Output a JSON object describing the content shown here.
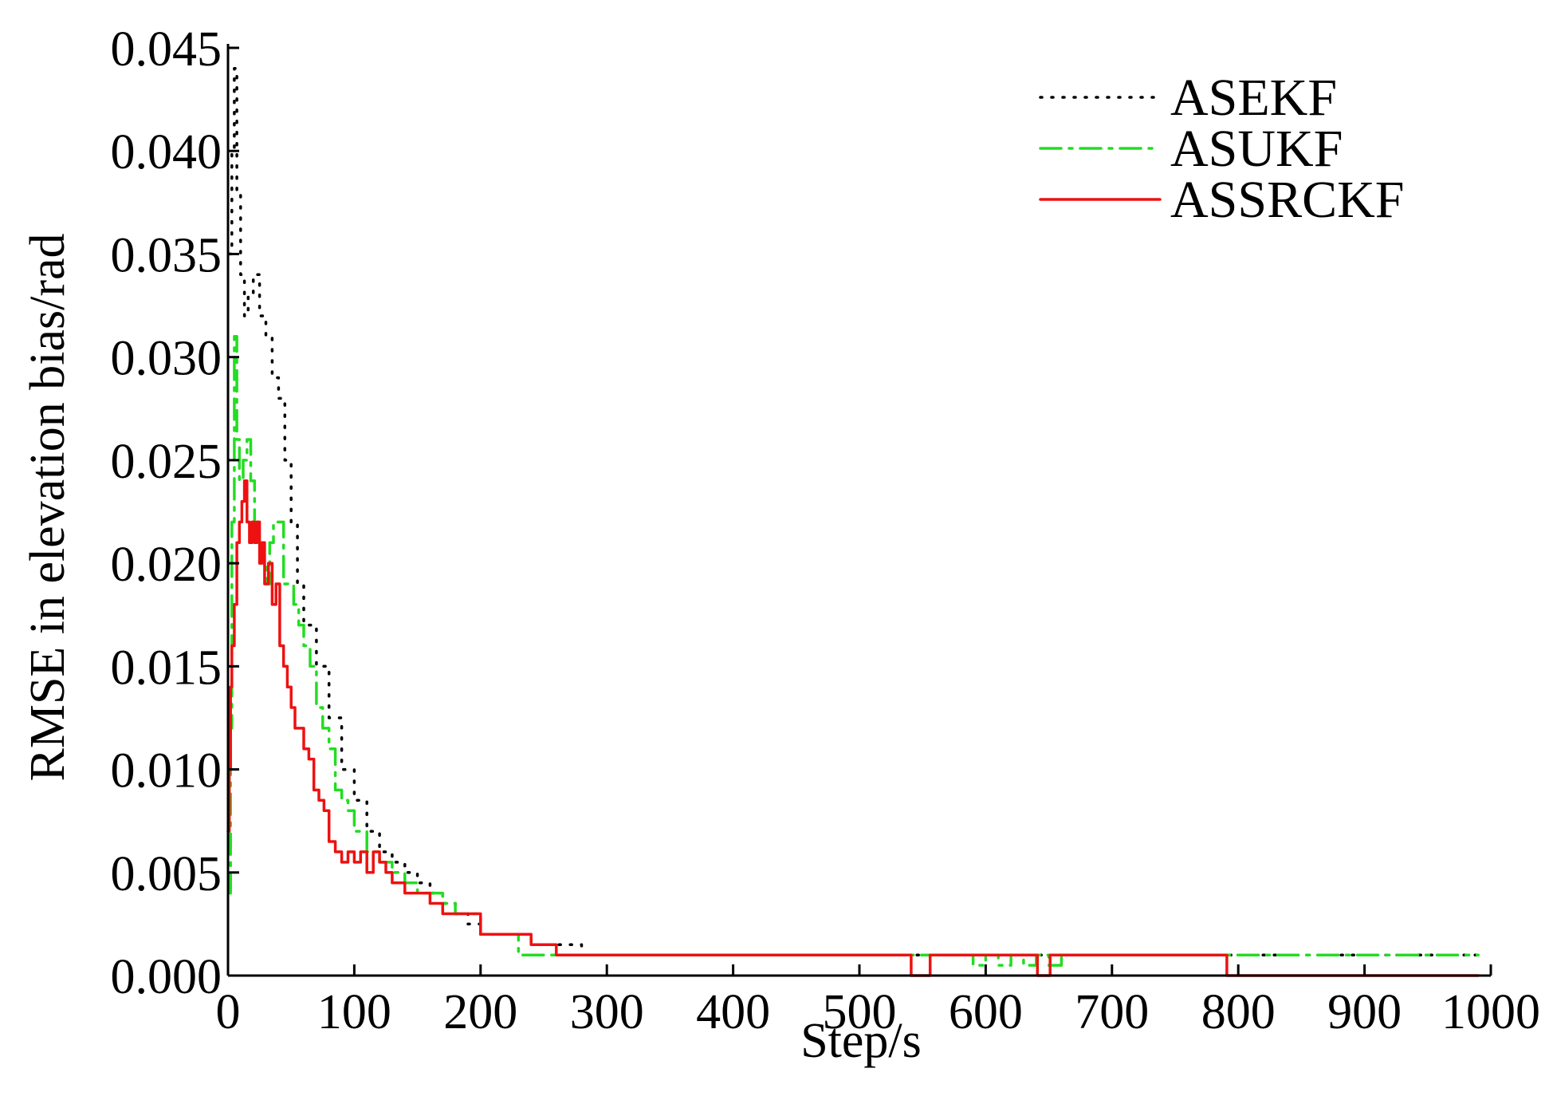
{
  "chart_data": {
    "type": "line",
    "title": "",
    "xlabel": "Step/s",
    "ylabel": "RMSE in elevation bias/rad",
    "xlim": [
      0,
      1000
    ],
    "ylim": [
      0,
      0.045
    ],
    "xticks": [
      0,
      100,
      200,
      300,
      400,
      500,
      600,
      700,
      800,
      900,
      1000
    ],
    "xtick_labels": [
      "0",
      "100",
      "200",
      "300",
      "400",
      "500",
      "600",
      "700",
      "800",
      "900",
      "1000"
    ],
    "yticks": [
      0,
      0.005,
      0.01,
      0.015,
      0.02,
      0.025,
      0.03,
      0.035,
      0.04,
      0.045
    ],
    "ytick_labels": [
      "0.000",
      "0.005",
      "0.010",
      "0.015",
      "0.020",
      "0.025",
      "0.030",
      "0.035",
      "0.040",
      "0.045"
    ],
    "grid": false,
    "legend_position": "top-right",
    "series": [
      {
        "name": "ASEKF",
        "color": "#000000",
        "style": "dotted",
        "x": [
          1,
          3,
          5,
          7,
          10,
          13,
          16,
          20,
          25,
          30,
          35,
          40,
          45,
          50,
          55,
          60,
          70,
          80,
          90,
          100,
          110,
          120,
          130,
          140,
          150,
          160,
          170,
          180,
          190,
          200,
          220,
          240,
          260,
          280,
          300,
          400,
          500,
          600,
          700,
          800,
          900,
          990
        ],
        "y": [
          0.035,
          0.04,
          0.044,
          0.038,
          0.034,
          0.032,
          0.033,
          0.034,
          0.032,
          0.031,
          0.029,
          0.028,
          0.025,
          0.022,
          0.019,
          0.017,
          0.015,
          0.0125,
          0.01,
          0.0085,
          0.007,
          0.006,
          0.0055,
          0.005,
          0.0045,
          0.004,
          0.0035,
          0.003,
          0.0025,
          0.002,
          0.002,
          0.0015,
          0.0015,
          0.001,
          0.001,
          0.001,
          0.001,
          0.001,
          0.001,
          0.001,
          0.001,
          0.001
        ]
      },
      {
        "name": "ASUKF",
        "color": "#22dd22",
        "style": "dashdot",
        "x": [
          1,
          2,
          3,
          5,
          7,
          9,
          12,
          15,
          18,
          21,
          24,
          27,
          30,
          33,
          36,
          40,
          44,
          48,
          52,
          56,
          60,
          65,
          70,
          75,
          80,
          85,
          90,
          95,
          100,
          110,
          120,
          130,
          140,
          150,
          160,
          170,
          180,
          190,
          200,
          210,
          220,
          230,
          240,
          250,
          260,
          300,
          400,
          500,
          580,
          590,
          600,
          610,
          620,
          630,
          640,
          650,
          660,
          670,
          700,
          800,
          900,
          990
        ],
        "y": [
          0.004,
          0.012,
          0.022,
          0.031,
          0.026,
          0.024,
          0.025,
          0.026,
          0.024,
          0.022,
          0.021,
          0.02,
          0.019,
          0.021,
          0.022,
          0.022,
          0.019,
          0.019,
          0.018,
          0.017,
          0.016,
          0.015,
          0.013,
          0.012,
          0.011,
          0.009,
          0.0085,
          0.008,
          0.007,
          0.006,
          0.0055,
          0.005,
          0.0045,
          0.004,
          0.004,
          0.0035,
          0.003,
          0.003,
          0.002,
          0.002,
          0.002,
          0.001,
          0.001,
          0.001,
          0.001,
          0.001,
          0.001,
          0.001,
          0.001,
          0.0005,
          0.001,
          0.0005,
          0.001,
          0.0005,
          0.001,
          0.0005,
          0.001,
          0.001,
          0.001,
          0.001,
          0.001,
          0.001
        ]
      },
      {
        "name": "ASSRCKF",
        "color": "#ee1111",
        "style": "solid",
        "x": [
          0,
          1,
          2,
          3,
          5,
          7,
          9,
          11,
          13,
          15,
          17,
          19,
          21,
          23,
          25,
          27,
          29,
          32,
          35,
          38,
          41,
          44,
          47,
          50,
          53,
          56,
          60,
          64,
          68,
          72,
          76,
          80,
          85,
          90,
          95,
          100,
          105,
          110,
          115,
          120,
          125,
          130,
          140,
          150,
          160,
          170,
          180,
          190,
          200,
          210,
          220,
          230,
          240,
          250,
          260,
          300,
          400,
          500,
          540,
          541,
          555,
          556,
          600,
          640,
          641,
          650,
          651,
          700,
          790,
          791,
          800,
          990
        ],
        "y": [
          0.007,
          0.01,
          0.014,
          0.016,
          0.018,
          0.021,
          0.022,
          0.023,
          0.024,
          0.022,
          0.021,
          0.022,
          0.021,
          0.022,
          0.02,
          0.021,
          0.019,
          0.02,
          0.018,
          0.019,
          0.016,
          0.015,
          0.014,
          0.013,
          0.012,
          0.012,
          0.011,
          0.0105,
          0.009,
          0.0085,
          0.008,
          0.0065,
          0.006,
          0.0055,
          0.006,
          0.0055,
          0.006,
          0.005,
          0.006,
          0.0055,
          0.005,
          0.0045,
          0.004,
          0.004,
          0.0035,
          0.003,
          0.003,
          0.003,
          0.002,
          0.002,
          0.002,
          0.002,
          0.0015,
          0.0015,
          0.001,
          0.001,
          0.001,
          0.001,
          0.001,
          0.0,
          0.0,
          0.001,
          0.001,
          0.001,
          0.0,
          0.0,
          0.001,
          0.001,
          0.001,
          0.0,
          0.0,
          0.0
        ]
      }
    ]
  }
}
